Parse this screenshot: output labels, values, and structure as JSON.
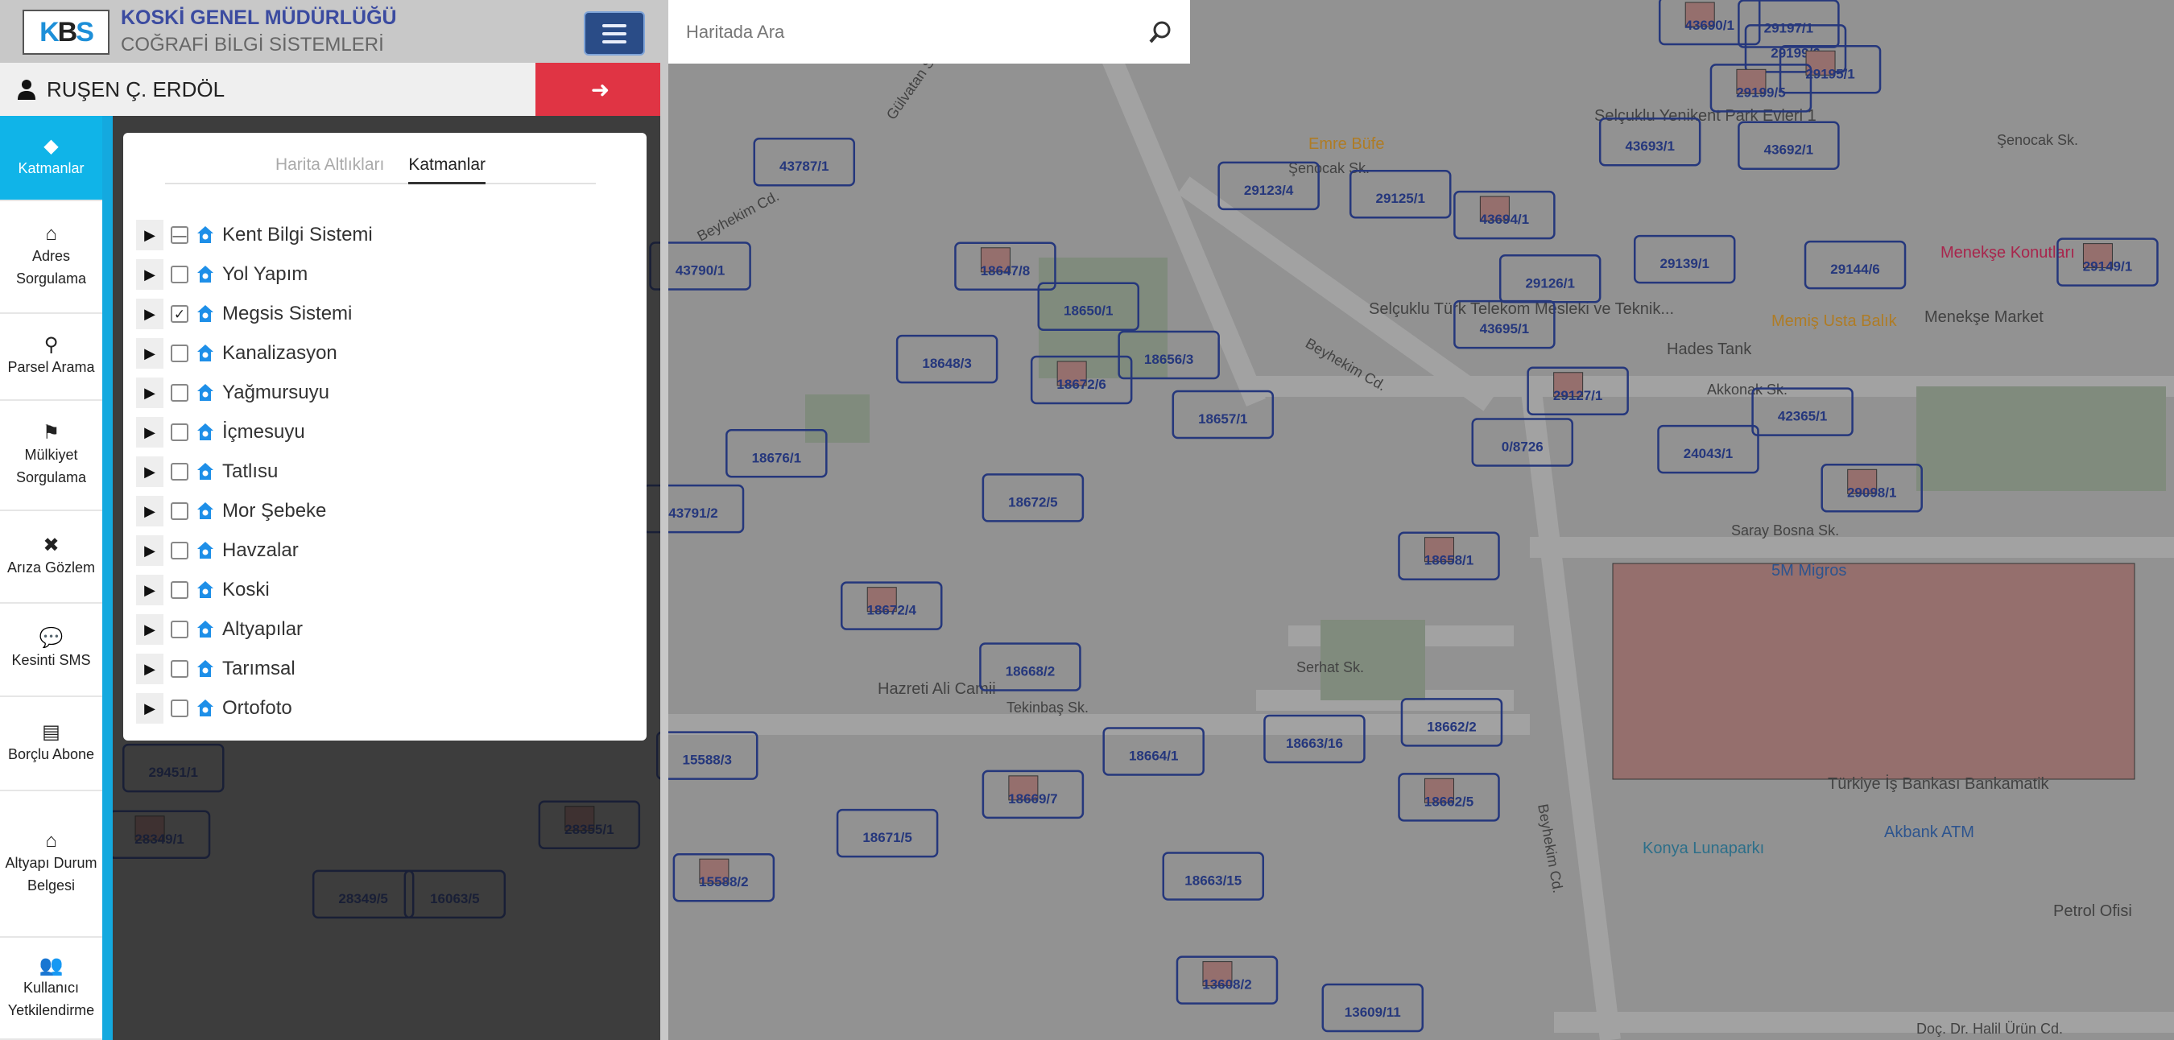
{
  "header": {
    "title": "KOSKİ GENEL MÜDÜRLÜĞÜ",
    "subtitle": "COĞRAFİ BİLGİ SİSTEMLERİ",
    "logo_text": "KBS",
    "menu_icon": "hamburger-icon"
  },
  "user": {
    "name": "RUŞEN Ç. ERDÖL",
    "icon": "user-icon",
    "logout_icon": "sign-out-icon"
  },
  "sidebar": {
    "items": [
      {
        "label": "Katmanlar",
        "icon": "layers-icon",
        "active": true
      },
      {
        "label": "Adres Sorgulama",
        "icon": "home-icon"
      },
      {
        "label": "Parsel Arama",
        "icon": "search-icon"
      },
      {
        "label": "Mülkiyet Sorgulama",
        "icon": "map-pin-icon"
      },
      {
        "label": "Arıza Gözlem",
        "icon": "tools-icon"
      },
      {
        "label": "Kesinti SMS",
        "icon": "sms-icon"
      },
      {
        "label": "Borçlu Abone",
        "icon": "cash-register-icon"
      },
      {
        "label": "Altyapı Durum Belgesi",
        "icon": "house-pipe-icon"
      },
      {
        "label": "Kullanıcı Yetkilendirme",
        "icon": "users-gear-icon"
      }
    ]
  },
  "layers_panel": {
    "tabs": [
      {
        "label": "Harita Altlıkları",
        "active": false
      },
      {
        "label": "Katmanlar",
        "active": true
      }
    ],
    "layers": [
      {
        "name": "Kent Bilgi Sistemi",
        "state": "partial"
      },
      {
        "name": "Yol Yapım",
        "state": "unchecked"
      },
      {
        "name": "Megsis Sistemi",
        "state": "checked"
      },
      {
        "name": "Kanalizasyon",
        "state": "unchecked"
      },
      {
        "name": "Yağmursuyu",
        "state": "unchecked"
      },
      {
        "name": "İçmesuyu",
        "state": "unchecked"
      },
      {
        "name": "Tatlısu",
        "state": "unchecked"
      },
      {
        "name": "Mor Şebeke",
        "state": "unchecked"
      },
      {
        "name": "Havzalar",
        "state": "unchecked"
      },
      {
        "name": "Koski",
        "state": "unchecked"
      },
      {
        "name": "Altyapılar",
        "state": "unchecked"
      },
      {
        "name": "Tarımsal",
        "state": "unchecked"
      },
      {
        "name": "Ortofoto",
        "state": "unchecked"
      }
    ]
  },
  "search": {
    "placeholder": "Haritada Ara",
    "value": "",
    "icon": "search-icon"
  },
  "map": {
    "parcels": [
      "43690/1",
      "29197/1",
      "29199/6",
      "29195/1",
      "43692/1",
      "43693/1",
      "29199/5",
      "29123/4",
      "29125/1",
      "43694/1",
      "29139/1",
      "29144/6",
      "29149/1",
      "29126/1",
      "43695/1",
      "29127/1",
      "42365/1",
      "24043/1",
      "29098/1",
      "0/8726",
      "18657/1",
      "18658/1",
      "18650/1",
      "18656/3",
      "18672/6",
      "18648/3",
      "18672/5",
      "18672/4",
      "18668/2",
      "18664/1",
      "18669/7",
      "18663/16",
      "18662/2",
      "18662/5",
      "18663/15",
      "13609/11",
      "13608/2",
      "18671/5",
      "15588/3",
      "15588/2",
      "18676/1",
      "43791/2",
      "18647/8",
      "43787/1",
      "43790/1",
      "28349/1",
      "28349/5",
      "16063/5",
      "28355/1",
      "29451/1"
    ],
    "streets": [
      "Beyhekim Cd.",
      "Beyhekim Cd.",
      "Şenocak Sk.",
      "Şenocak Sk.",
      "Akkonak Sk.",
      "Serhat Sk.",
      "Tekinbaş Sk.",
      "Saray Bosna Sk.",
      "Doç. Dr. Halil Ürün Cd.",
      "Beyhekim Cd.",
      "Gülvatan Sk."
    ],
    "pois": [
      "Emre Büfe",
      "Selçuklu Yenikent Park Evleri 1",
      "Menekşe Konutları",
      "Menekşe Market",
      "Hazreti Ali Camii",
      "Konya Lunaparkı",
      "Akbank ATM",
      "Petrol Ofisi",
      "5M Migros",
      "Türkiye İş Bankası Bankamatik",
      "Selçuklu Türk Telekom Mesleki ve Teknik...",
      "Hades Tank",
      "Memiş Usta Balık"
    ],
    "colors": {
      "parcel": "#20368a",
      "building": "#a97a78",
      "poi_red": "#c02050",
      "poi_orange": "#c88a20"
    }
  }
}
